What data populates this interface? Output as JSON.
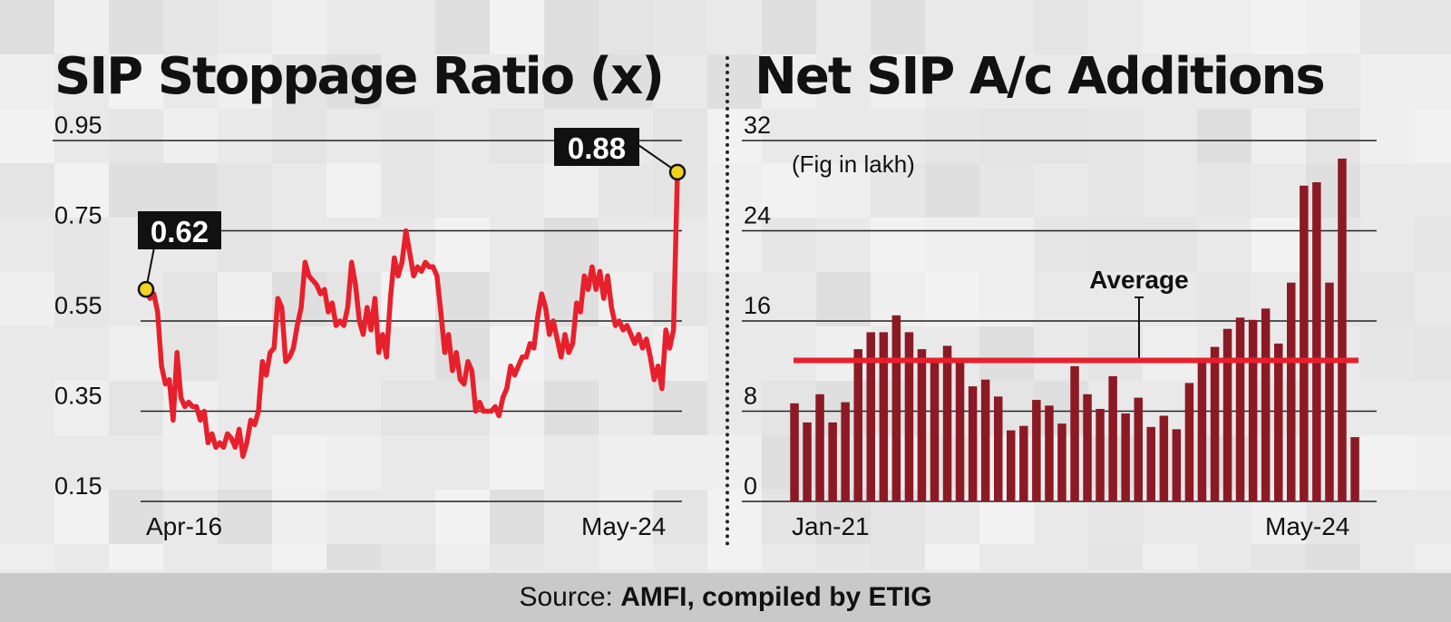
{
  "left_title": "SIP Stoppage Ratio (x)",
  "right_title": "Net SIP A/c Additions",
  "footer": {
    "prefix": "Source:",
    "bold": "AMFI, compiled by ETIG"
  },
  "colors": {
    "line": "#e8202c",
    "bar": "#8b1a24",
    "average": "#e8202c",
    "marker": "#f3d21f"
  },
  "chart_data": [
    {
      "type": "line",
      "title": "SIP Stoppage Ratio (x)",
      "y_ticks": [
        "0.95",
        "0.75",
        "0.55",
        "0.35",
        "0.15"
      ],
      "ylim": [
        0.15,
        0.95
      ],
      "x_tick_labels": [
        "Apr-16",
        "May-24"
      ],
      "grid": true,
      "series": [
        {
          "values": [
            0.62,
            0.6,
            0.61,
            0.57,
            0.45,
            0.41,
            0.42,
            0.33,
            0.48,
            0.38,
            0.36,
            0.37,
            0.36,
            0.36,
            0.33,
            0.35,
            0.28,
            0.3,
            0.27,
            0.28,
            0.27,
            0.3,
            0.29,
            0.27,
            0.31,
            0.25,
            0.28,
            0.33,
            0.32,
            0.35,
            0.46,
            0.43,
            0.48,
            0.49,
            0.6,
            0.58,
            0.46,
            0.47,
            0.49,
            0.54,
            0.58,
            0.68,
            0.65,
            0.64,
            0.63,
            0.61,
            0.62,
            0.57,
            0.59,
            0.54,
            0.55,
            0.54,
            0.58,
            0.68,
            0.63,
            0.55,
            0.52,
            0.58,
            0.53,
            0.6,
            0.48,
            0.52,
            0.47,
            0.6,
            0.69,
            0.65,
            0.68,
            0.75,
            0.7,
            0.65,
            0.67,
            0.66,
            0.68,
            0.67,
            0.67,
            0.65,
            0.57,
            0.48,
            0.52,
            0.44,
            0.48,
            0.42,
            0.41,
            0.46,
            0.44,
            0.35,
            0.37,
            0.35,
            0.35,
            0.35,
            0.36,
            0.34,
            0.38,
            0.4,
            0.45,
            0.43,
            0.45,
            0.47,
            0.47,
            0.5,
            0.49,
            0.56,
            0.61,
            0.58,
            0.52,
            0.55,
            0.51,
            0.47,
            0.52,
            0.48,
            0.5,
            0.59,
            0.57,
            0.65,
            0.62,
            0.67,
            0.62,
            0.66,
            0.6,
            0.65,
            0.58,
            0.54,
            0.55,
            0.53,
            0.54,
            0.52,
            0.5,
            0.52,
            0.49,
            0.51,
            0.47,
            0.42,
            0.45,
            0.4,
            0.53,
            0.49,
            0.53,
            0.88
          ]
        }
      ],
      "annotations": [
        {
          "label": "0.62"
        },
        {
          "label": "0.88"
        }
      ]
    },
    {
      "type": "bar",
      "title": "Net SIP A/c Additions",
      "subtitle": "(Fig in lakh)",
      "y_ticks": [
        "32",
        "24",
        "16",
        "8",
        "0"
      ],
      "ylim": [
        0,
        32
      ],
      "x_tick_labels": [
        "Jan-21",
        "May-24"
      ],
      "grid": true,
      "series": [
        {
          "values": [
            8.7,
            7.0,
            9.5,
            7.0,
            8.8,
            13.5,
            15.0,
            15.0,
            16.5,
            15.0,
            13.5,
            12.3,
            13.8,
            12.3,
            10.2,
            10.8,
            9.3,
            6.3,
            6.7,
            9.0,
            8.5,
            6.9,
            12.0,
            9.5,
            8.2,
            11.1,
            7.8,
            9.2,
            6.6,
            7.6,
            6.4,
            10.5,
            12.4,
            13.7,
            15.3,
            16.3,
            16.1,
            17.1,
            14.0,
            19.4,
            28.0,
            28.3,
            19.4,
            30.4,
            5.7
          ]
        }
      ],
      "average": {
        "label": "Average",
        "value": 12.5
      }
    }
  ]
}
